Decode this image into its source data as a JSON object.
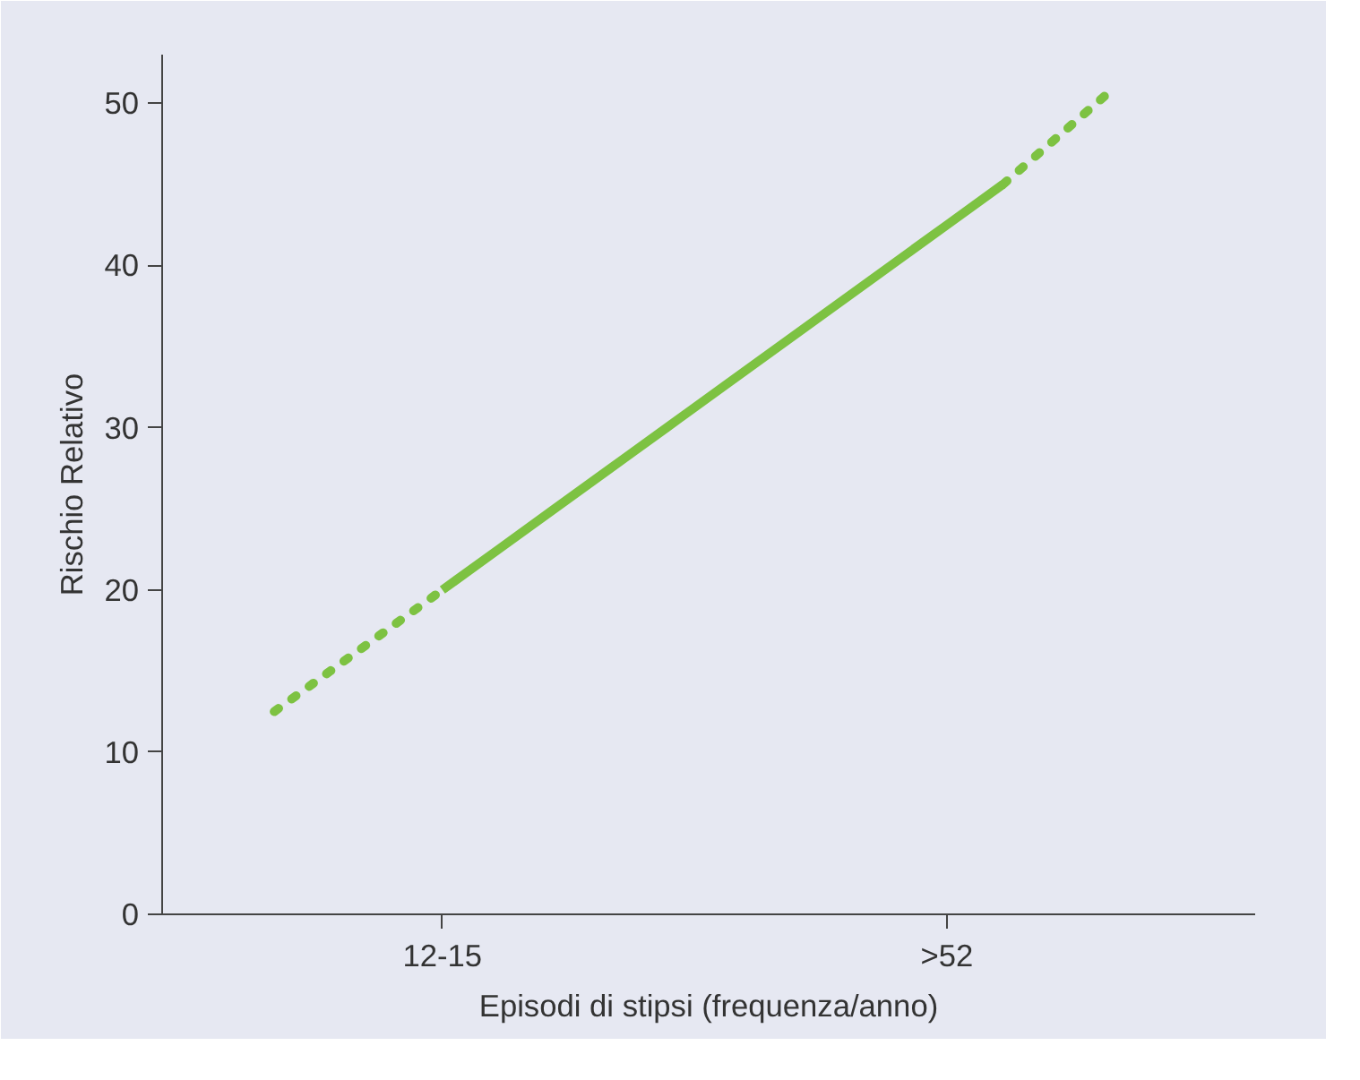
{
  "chart_data": {
    "type": "line",
    "xlabel": "Episodi di stipsi (frequenza/anno)",
    "ylabel": "Rischio Relativo",
    "categories": [
      null,
      null,
      null,
      "12-15",
      null,
      null,
      null,
      null,
      null,
      null,
      null,
      null,
      ">52",
      null,
      null,
      null
    ],
    "ylim": [
      0,
      53
    ],
    "yticks": [
      0,
      10,
      20,
      30,
      40,
      50
    ],
    "grid": false,
    "series": [
      {
        "color": "#7dc242",
        "values": [
          12.5,
          15.0,
          17.5,
          20.0,
          null,
          null,
          null,
          null,
          null,
          null,
          null,
          null,
          null,
          null,
          null,
          null
        ],
        "line_style": "dashed"
      },
      {
        "color": "#7dc242",
        "values": [
          null,
          null,
          null,
          20.0,
          22.5,
          25.0,
          27.5,
          30.0,
          32.5,
          35.0,
          37.5,
          40.0,
          42.5,
          45.0,
          null,
          null
        ],
        "line_style": "solid"
      },
      {
        "color": "#7dc242",
        "values": [
          null,
          null,
          null,
          null,
          null,
          null,
          null,
          null,
          null,
          null,
          null,
          null,
          null,
          45.0,
          48.0,
          51.0
        ],
        "line_style": "dashed"
      }
    ]
  }
}
